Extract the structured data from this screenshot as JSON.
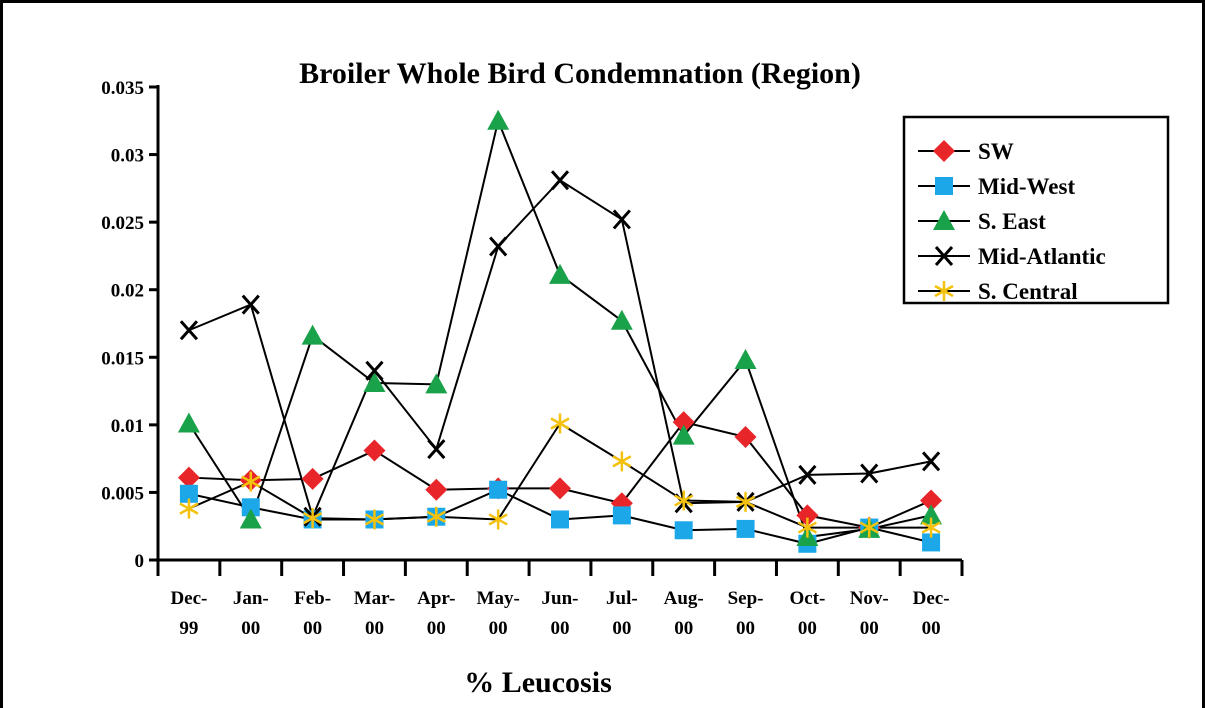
{
  "chart_data": {
    "type": "line",
    "title": "Broiler Whole Bird Condemnation (Region)",
    "x_label": "% Leucosis",
    "categories": [
      "Dec-\n99",
      "Jan-\n00",
      "Feb-\n00",
      "Mar-\n00",
      "Apr-\n00",
      "May-\n00",
      "Jun-\n00",
      "Jul-\n00",
      "Aug-\n00",
      "Sep-\n00",
      "Oct-\n00",
      "Nov-\n00",
      "Dec-\n00"
    ],
    "ylim": [
      0,
      0.035
    ],
    "yticks": [
      0,
      0.005,
      0.01,
      0.015,
      0.02,
      0.025,
      0.03,
      0.035
    ],
    "legend": "upper right",
    "series": [
      {
        "name": "SW",
        "color": "#e8262a",
        "marker": "diamond",
        "values": [
          0.0061,
          0.0059,
          0.006,
          0.0081,
          0.0052,
          0.0053,
          0.0053,
          0.0042,
          0.0102,
          0.0091,
          0.0033,
          0.0024,
          0.0044
        ]
      },
      {
        "name": "Mid-West",
        "color": "#1ca8e8",
        "marker": "square",
        "values": [
          0.0049,
          0.0039,
          0.003,
          0.003,
          0.0032,
          0.0052,
          0.003,
          0.0033,
          0.0022,
          0.0023,
          0.0012,
          0.0024,
          0.0013
        ]
      },
      {
        "name": "S. East",
        "color": "#19a24a",
        "marker": "triangle",
        "values": [
          0.0101,
          0.003,
          0.0166,
          0.0131,
          0.013,
          0.0325,
          0.0211,
          0.0177,
          0.0092,
          0.0148,
          0.0017,
          0.0023,
          0.0033
        ]
      },
      {
        "name": "Mid-Atlantic",
        "color": "#000000",
        "marker": "x",
        "values": [
          0.017,
          0.0189,
          0.0032,
          0.014,
          0.0082,
          0.0232,
          0.0281,
          0.0252,
          0.0042,
          0.0043,
          0.0063,
          0.0064,
          0.0073
        ]
      },
      {
        "name": "S. Central",
        "color": "#f4c20d",
        "marker": "asterisk",
        "values": [
          0.0038,
          0.0058,
          0.0031,
          0.003,
          0.0032,
          0.003,
          0.0101,
          0.0073,
          0.0044,
          0.0043,
          0.0024,
          0.0024,
          0.0024
        ]
      }
    ]
  }
}
